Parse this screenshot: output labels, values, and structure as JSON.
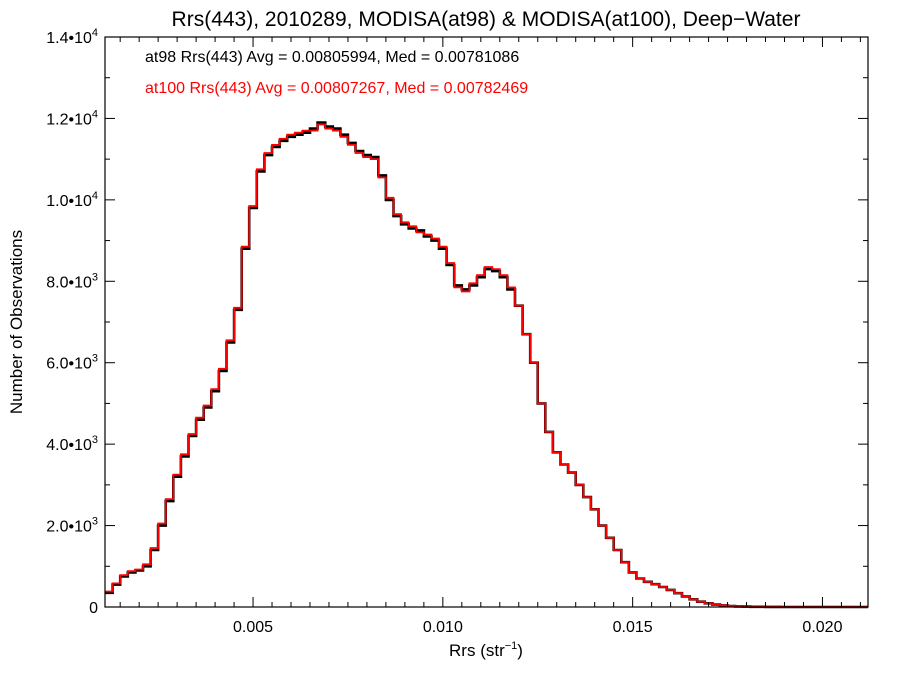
{
  "chart_data": {
    "type": "line",
    "title": "Rrs(443), 2010289, MODISA(at98) & MODISA(at100), Deep−Water",
    "xlabel_main": "Rrs (str",
    "xlabel_sup": "−1",
    "xlabel_tail": ")",
    "ylabel": "Number of Observations",
    "xlim": [
      0.0011,
      0.0212
    ],
    "ylim": [
      0,
      14000
    ],
    "x_ticks": [
      {
        "value": 0.005,
        "label": "0.005"
      },
      {
        "value": 0.01,
        "label": "0.010"
      },
      {
        "value": 0.015,
        "label": "0.015"
      },
      {
        "value": 0.02,
        "label": "0.020"
      }
    ],
    "y_ticks": [
      {
        "value": 0,
        "mantissa": "0",
        "exp": ""
      },
      {
        "value": 2000,
        "mantissa": "2.0•10",
        "exp": "3"
      },
      {
        "value": 4000,
        "mantissa": "4.0•10",
        "exp": "3"
      },
      {
        "value": 6000,
        "mantissa": "6.0•10",
        "exp": "3"
      },
      {
        "value": 8000,
        "mantissa": "8.0•10",
        "exp": "3"
      },
      {
        "value": 10000,
        "mantissa": "1.0•10",
        "exp": "4"
      },
      {
        "value": 12000,
        "mantissa": "1.2•10",
        "exp": "4"
      },
      {
        "value": 14000,
        "mantissa": "1.4•10",
        "exp": "4"
      }
    ],
    "annotations": [
      {
        "text": "at98 Rrs(443) Avg = 0.00805994, Med = 0.00781086",
        "color": "#000000"
      },
      {
        "text": "at100 Rrs(443) Avg = 0.00807267, Med = 0.00782469",
        "color": "#ff0000"
      }
    ],
    "series": [
      {
        "color": "#000000",
        "x": [
          0.0011,
          0.0013,
          0.0015,
          0.0017,
          0.0019,
          0.0021,
          0.0023,
          0.0025,
          0.0027,
          0.0029,
          0.0031,
          0.0033,
          0.0035,
          0.0037,
          0.0039,
          0.0041,
          0.0043,
          0.0045,
          0.0047,
          0.0049,
          0.0051,
          0.0053,
          0.0055,
          0.0057,
          0.0059,
          0.0061,
          0.0063,
          0.0065,
          0.0067,
          0.0069,
          0.0071,
          0.0073,
          0.0075,
          0.0077,
          0.0079,
          0.0081,
          0.0083,
          0.0085,
          0.0087,
          0.0089,
          0.0091,
          0.0093,
          0.0095,
          0.0097,
          0.0099,
          0.0101,
          0.0103,
          0.0105,
          0.0107,
          0.0109,
          0.0111,
          0.0113,
          0.0115,
          0.0117,
          0.0119,
          0.0121,
          0.0123,
          0.0125,
          0.0127,
          0.0129,
          0.0131,
          0.0133,
          0.0135,
          0.0137,
          0.0139,
          0.0141,
          0.0143,
          0.0145,
          0.0147,
          0.0149,
          0.0151,
          0.0153,
          0.0155,
          0.0157,
          0.0159,
          0.0161,
          0.0163,
          0.0165,
          0.0167,
          0.0169,
          0.0171,
          0.0173,
          0.0175,
          0.0177,
          0.0179,
          0.0181,
          0.0183,
          0.0185,
          0.0187,
          0.0189,
          0.0191,
          0.0195,
          0.02,
          0.0205,
          0.0212
        ],
        "y": [
          350,
          550,
          750,
          850,
          900,
          1000,
          1400,
          2000,
          2600,
          3200,
          3700,
          4200,
          4600,
          4900,
          5300,
          5800,
          6500,
          7300,
          8800,
          9800,
          10700,
          11100,
          11300,
          11450,
          11550,
          11600,
          11650,
          11750,
          11900,
          11800,
          11750,
          11600,
          11400,
          11200,
          11100,
          11050,
          10600,
          10000,
          9600,
          9400,
          9300,
          9250,
          9100,
          9000,
          8800,
          8400,
          7900,
          7800,
          7900,
          8100,
          8300,
          8250,
          8100,
          7800,
          7400,
          6700,
          6000,
          5000,
          4300,
          3800,
          3500,
          3300,
          3000,
          2700,
          2400,
          2000,
          1700,
          1400,
          1100,
          850,
          700,
          620,
          560,
          490,
          420,
          340,
          260,
          190,
          130,
          90,
          60,
          40,
          25,
          15,
          10,
          6,
          4,
          3,
          2,
          1,
          1,
          0,
          0,
          0,
          0
        ]
      },
      {
        "color": "#ff0000",
        "x": [
          0.0011,
          0.0013,
          0.0015,
          0.0017,
          0.0019,
          0.0021,
          0.0023,
          0.0025,
          0.0027,
          0.0029,
          0.0031,
          0.0033,
          0.0035,
          0.0037,
          0.0039,
          0.0041,
          0.0043,
          0.0045,
          0.0047,
          0.0049,
          0.0051,
          0.0053,
          0.0055,
          0.0057,
          0.0059,
          0.0061,
          0.0063,
          0.0065,
          0.0067,
          0.0069,
          0.0071,
          0.0073,
          0.0075,
          0.0077,
          0.0079,
          0.0081,
          0.0083,
          0.0085,
          0.0087,
          0.0089,
          0.0091,
          0.0093,
          0.0095,
          0.0097,
          0.0099,
          0.0101,
          0.0103,
          0.0105,
          0.0107,
          0.0109,
          0.0111,
          0.0113,
          0.0115,
          0.0117,
          0.0119,
          0.0121,
          0.0123,
          0.0125,
          0.0127,
          0.0129,
          0.0131,
          0.0133,
          0.0135,
          0.0137,
          0.0139,
          0.0141,
          0.0143,
          0.0145,
          0.0147,
          0.0149,
          0.0151,
          0.0153,
          0.0155,
          0.0157,
          0.0159,
          0.0161,
          0.0163,
          0.0165,
          0.0167,
          0.0169,
          0.0171,
          0.0173,
          0.0175,
          0.0177,
          0.0179,
          0.0181,
          0.0183,
          0.0185,
          0.0187,
          0.0189,
          0.0191,
          0.0195,
          0.02,
          0.0205,
          0.0212
        ],
        "y": [
          380,
          580,
          780,
          880,
          920,
          1050,
          1450,
          2050,
          2650,
          3250,
          3750,
          4250,
          4650,
          4950,
          5350,
          5850,
          6550,
          7350,
          8850,
          9850,
          10750,
          11150,
          11350,
          11500,
          11600,
          11650,
          11700,
          11700,
          11850,
          11750,
          11700,
          11550,
          11350,
          11150,
          11050,
          11000,
          10550,
          10050,
          9650,
          9450,
          9350,
          9200,
          9150,
          9050,
          8850,
          8450,
          7850,
          7750,
          7950,
          8150,
          8350,
          8300,
          8150,
          7850,
          7400,
          6700,
          6000,
          5000,
          4300,
          3800,
          3500,
          3300,
          3000,
          2700,
          2400,
          2000,
          1700,
          1400,
          1100,
          850,
          700,
          620,
          560,
          490,
          420,
          340,
          260,
          190,
          130,
          90,
          60,
          40,
          25,
          15,
          10,
          6,
          4,
          3,
          2,
          1,
          1,
          0,
          0,
          0,
          0
        ]
      }
    ]
  }
}
